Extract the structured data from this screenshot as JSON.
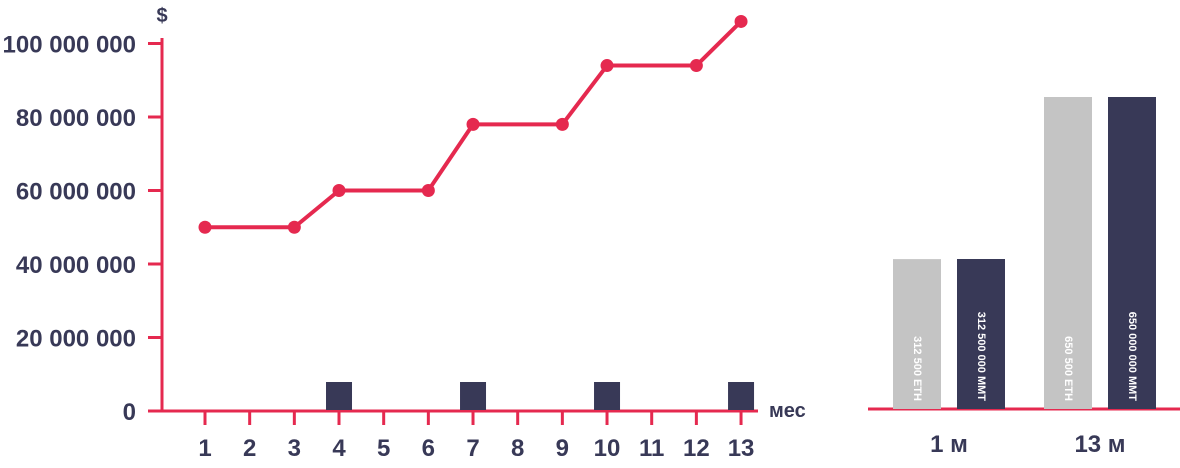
{
  "colors": {
    "accent": "#e5294f",
    "navy": "#383957",
    "gray": "#c4c4c4",
    "text": "#383957"
  },
  "chart_data": [
    {
      "type": "line",
      "ylabel": "$",
      "xlabel": "мес",
      "ylim": [
        0,
        110000000
      ],
      "y_ticks": [
        0,
        20000000,
        40000000,
        60000000,
        80000000,
        100000000
      ],
      "y_tick_labels": [
        "0",
        "20 000 000",
        "40 000 000",
        "60 000 000",
        "80 000 000",
        "100 000 000"
      ],
      "x": [
        1,
        2,
        3,
        4,
        5,
        6,
        7,
        8,
        9,
        10,
        11,
        12,
        13
      ],
      "x_tick_labels": [
        "1",
        "2",
        "3",
        "4",
        "5",
        "6",
        "7",
        "8",
        "9",
        "10",
        "11",
        "12",
        "13"
      ],
      "series": [
        {
          "points": [
            {
              "x": 1,
              "y": 50000000
            },
            {
              "x": 3,
              "y": 50000000
            },
            {
              "x": 4,
              "y": 60000000
            },
            {
              "x": 6,
              "y": 60000000
            },
            {
              "x": 7,
              "y": 78000000
            },
            {
              "x": 9,
              "y": 78000000
            },
            {
              "x": 10,
              "y": 94000000
            },
            {
              "x": 12,
              "y": 94000000
            },
            {
              "x": 13,
              "y": 106000000
            }
          ]
        }
      ],
      "event_markers_at_x": [
        4,
        7,
        10,
        13
      ]
    },
    {
      "type": "bar",
      "categories": [
        "1 м",
        "13 м"
      ],
      "series": [
        {
          "labels": [
            "312 500 ETH",
            "650 500 ETH"
          ],
          "values": [
            312500,
            650500
          ]
        },
        {
          "labels": [
            "312 500 000 MMT",
            "650 000 000 MMT"
          ],
          "values": [
            312500000,
            650000000
          ]
        }
      ]
    }
  ]
}
